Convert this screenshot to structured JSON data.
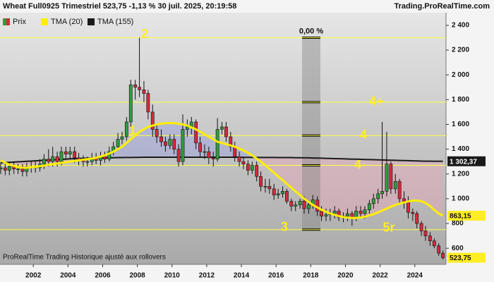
{
  "chart_data": {
    "type": "candlestick",
    "title": "Wheat Full0925 Trimestriel 523,75 -1,13 % 30 juil. 2025, 20:19:58",
    "source": "Trading.ProRealTime.com",
    "footer": "ProRealTime Trading  Historique ajusté aux rollovers",
    "xlim": [
      2000.08,
      2025.8
    ],
    "xticks": [
      2002,
      2004,
      2006,
      2008,
      2010,
      2012,
      2014,
      2016,
      2018,
      2020,
      2022,
      2024
    ],
    "ylim": [
      470,
      2445
    ],
    "yticks": [
      600,
      800,
      {
        "value": 1000,
        "label": "1 000"
      },
      {
        "value": 1200,
        "label": "1 200"
      },
      {
        "value": 1400,
        "label": "1 400"
      },
      {
        "value": 1600,
        "label": "1 600"
      },
      {
        "value": 1800,
        "label": "1 800"
      },
      {
        "value": 2000,
        "label": "2 000"
      },
      {
        "value": 2200,
        "label": "2 200"
      },
      {
        "value": 2400,
        "label": "2 400"
      }
    ],
    "x": [
      2000.12,
      2000.38,
      2000.62,
      2000.88,
      2001.12,
      2001.38,
      2001.62,
      2001.88,
      2002.12,
      2002.38,
      2002.62,
      2002.88,
      2003.12,
      2003.38,
      2003.62,
      2003.88,
      2004.12,
      2004.38,
      2004.62,
      2004.88,
      2005.12,
      2005.38,
      2005.62,
      2005.88,
      2006.12,
      2006.38,
      2006.62,
      2006.88,
      2007.12,
      2007.38,
      2007.62,
      2007.88,
      2008.12,
      2008.38,
      2008.62,
      2008.88,
      2009.12,
      2009.38,
      2009.62,
      2009.88,
      2010.12,
      2010.38,
      2010.62,
      2010.88,
      2011.12,
      2011.38,
      2011.62,
      2011.88,
      2012.12,
      2012.38,
      2012.62,
      2012.88,
      2013.12,
      2013.38,
      2013.62,
      2013.88,
      2014.12,
      2014.38,
      2014.62,
      2014.88,
      2015.12,
      2015.38,
      2015.62,
      2015.88,
      2016.12,
      2016.38,
      2016.62,
      2016.88,
      2017.12,
      2017.38,
      2017.62,
      2017.88,
      2018.12,
      2018.38,
      2018.62,
      2018.88,
      2019.12,
      2019.38,
      2019.62,
      2019.88,
      2020.12,
      2020.38,
      2020.62,
      2020.88,
      2021.12,
      2021.38,
      2021.62,
      2021.88,
      2022.12,
      2022.38,
      2022.62,
      2022.88,
      2023.12,
      2023.38,
      2023.62,
      2023.88,
      2024.12,
      2024.38,
      2024.62,
      2024.88,
      2025.12,
      2025.38,
      2025.62
    ],
    "series": [
      {
        "name": "Prix",
        "type": "candlestick",
        "up_color": "#2e9e3c",
        "down_color": "#d8283c",
        "last_label": "523,75",
        "label_color": "#ffee22",
        "open": [
          1240,
          1250,
          1230,
          1260,
          1240,
          1240,
          1220,
          1250,
          1260,
          1250,
          1280,
          1320,
          1300,
          1340,
          1300,
          1380,
          1360,
          1380,
          1330,
          1310,
          1300,
          1300,
          1330,
          1310,
          1340,
          1320,
          1380,
          1420,
          1480,
          1500,
          1620,
          1920,
          1900,
          1880,
          1850,
          1700,
          1560,
          1500,
          1460,
          1430,
          1480,
          1400,
          1300,
          1560,
          1580,
          1620,
          1450,
          1380,
          1380,
          1330,
          1320,
          1560,
          1580,
          1500,
          1420,
          1340,
          1300,
          1280,
          1230,
          1270,
          1180,
          1100,
          1100,
          1080,
          1030,
          1040,
          1060,
          980,
          940,
          950,
          980,
          920,
          950,
          990,
          900,
          860,
          870,
          880,
          900,
          850,
          860,
          880,
          840,
          900,
          880,
          910,
          960,
          1000,
          1040,
          1060,
          1280,
          1080,
          1140,
          1000,
          980,
          890,
          880,
          800,
          740,
          700,
          660,
          620,
          560
        ],
        "high": [
          1290,
          1290,
          1300,
          1300,
          1280,
          1280,
          1290,
          1300,
          1300,
          1320,
          1360,
          1400,
          1420,
          1380,
          1420,
          1420,
          1420,
          1420,
          1370,
          1350,
          1340,
          1370,
          1370,
          1380,
          1380,
          1420,
          1460,
          1530,
          1540,
          1660,
          1960,
          1960,
          2300,
          1950,
          1880,
          1760,
          1600,
          1560,
          1500,
          1520,
          1520,
          1440,
          1680,
          1640,
          1660,
          1640,
          1500,
          1440,
          1420,
          1380,
          1650,
          1620,
          1620,
          1540,
          1460,
          1380,
          1340,
          1310,
          1300,
          1300,
          1220,
          1160,
          1160,
          1120,
          1080,
          1100,
          1080,
          1000,
          980,
          1000,
          1020,
          980,
          1030,
          1020,
          940,
          920,
          920,
          940,
          920,
          890,
          920,
          900,
          940,
          940,
          940,
          990,
          1040,
          1080,
          1620,
          1540,
          1300,
          1200,
          1160,
          1060,
          1020,
          920,
          900,
          820,
          780,
          730,
          680,
          640,
          580
        ],
        "low": [
          1200,
          1190,
          1190,
          1200,
          1200,
          1180,
          1180,
          1210,
          1210,
          1220,
          1240,
          1260,
          1260,
          1260,
          1270,
          1320,
          1320,
          1290,
          1270,
          1260,
          1260,
          1270,
          1280,
          1270,
          1290,
          1300,
          1350,
          1390,
          1440,
          1470,
          1580,
          1800,
          1820,
          1780,
          1640,
          1500,
          1450,
          1420,
          1380,
          1400,
          1360,
          1260,
          1270,
          1500,
          1520,
          1400,
          1340,
          1320,
          1280,
          1260,
          1300,
          1520,
          1460,
          1380,
          1300,
          1260,
          1240,
          1190,
          1200,
          1140,
          1060,
          1050,
          1040,
          990,
          1000,
          1010,
          960,
          900,
          900,
          920,
          880,
          880,
          920,
          860,
          820,
          820,
          820,
          840,
          820,
          810,
          820,
          780,
          820,
          840,
          840,
          880,
          920,
          960,
          1000,
          1020,
          1040,
          1040,
          960,
          920,
          840,
          820,
          760,
          700,
          660,
          620,
          600,
          540,
          510
        ],
        "close": [
          1250,
          1230,
          1260,
          1240,
          1240,
          1220,
          1250,
          1260,
          1250,
          1280,
          1320,
          1300,
          1340,
          1300,
          1380,
          1360,
          1380,
          1330,
          1310,
          1300,
          1300,
          1330,
          1310,
          1340,
          1320,
          1380,
          1420,
          1480,
          1500,
          1620,
          1920,
          1900,
          1880,
          1850,
          1700,
          1560,
          1500,
          1460,
          1430,
          1480,
          1400,
          1300,
          1560,
          1580,
          1620,
          1450,
          1380,
          1380,
          1330,
          1320,
          1560,
          1580,
          1500,
          1420,
          1340,
          1300,
          1280,
          1230,
          1270,
          1180,
          1100,
          1100,
          1080,
          1030,
          1040,
          1060,
          980,
          940,
          950,
          980,
          920,
          950,
          990,
          900,
          860,
          870,
          880,
          900,
          850,
          860,
          880,
          840,
          900,
          880,
          910,
          960,
          1000,
          1040,
          1060,
          1280,
          1080,
          1140,
          1000,
          980,
          890,
          880,
          800,
          740,
          700,
          660,
          620,
          560,
          523.75
        ]
      },
      {
        "name": "TMA (20)",
        "type": "line",
        "color": "#ffee00",
        "last_label": "863,15",
        "label_color": "#ffee22",
        "values": [
          1310,
          1290,
          1275,
          1265,
          1255,
          1250,
          1250,
          1255,
          1258,
          1262,
          1268,
          1275,
          1280,
          1285,
          1290,
          1295,
          1300,
          1305,
          1310,
          1315,
          1320,
          1325,
          1330,
          1340,
          1350,
          1365,
          1380,
          1400,
          1420,
          1450,
          1480,
          1510,
          1540,
          1560,
          1580,
          1590,
          1600,
          1605,
          1610,
          1610,
          1610,
          1605,
          1600,
          1590,
          1575,
          1560,
          1540,
          1520,
          1500,
          1480,
          1460,
          1450,
          1440,
          1430,
          1420,
          1405,
          1390,
          1370,
          1350,
          1325,
          1300,
          1270,
          1240,
          1210,
          1180,
          1150,
          1120,
          1090,
          1060,
          1030,
          1000,
          975,
          950,
          930,
          910,
          895,
          880,
          870,
          860,
          852,
          848,
          845,
          845,
          848,
          855,
          865,
          875,
          890,
          905,
          920,
          935,
          950,
          960,
          970,
          978,
          985,
          985,
          980,
          965,
          940,
          910,
          880,
          863.15
        ]
      },
      {
        "name": "TMA (155)",
        "type": "line",
        "color": "#1a1a1a",
        "last_label": "1 302,37",
        "label_color": "#1a1a1a",
        "values": [
          1290,
          1292,
          1294,
          1296,
          1298,
          1300,
          1302,
          1304,
          1306,
          1308,
          1310,
          1312,
          1314,
          1316,
          1318,
          1320,
          1322,
          1324,
          1325,
          1326,
          1327,
          1328,
          1329,
          1330,
          1330,
          1331,
          1331,
          1332,
          1332,
          1333,
          1333,
          1334,
          1334,
          1335,
          1335,
          1335,
          1335,
          1335,
          1335,
          1335,
          1335,
          1335,
          1335,
          1335,
          1335,
          1335,
          1335,
          1335,
          1335,
          1335,
          1335,
          1335,
          1335,
          1335,
          1335,
          1335,
          1334,
          1334,
          1334,
          1334,
          1333,
          1333,
          1333,
          1333,
          1332,
          1332,
          1332,
          1332,
          1331,
          1331,
          1330,
          1330,
          1329,
          1328,
          1327,
          1326,
          1325,
          1324,
          1323,
          1322,
          1321,
          1320,
          1319,
          1318,
          1317,
          1316,
          1315,
          1314,
          1313,
          1312,
          1311,
          1310,
          1309,
          1308,
          1307,
          1306,
          1305,
          1304,
          1303,
          1303,
          1302.8,
          1302.6,
          1302.37
        ]
      }
    ],
    "levels": [
      {
        "value": 2300,
        "labels": [
          "2"
        ]
      },
      {
        "value": 1780,
        "labels": [
          "4+"
        ]
      },
      {
        "value": 1510,
        "labels": [
          "4",
          "1"
        ]
      },
      {
        "value": 1270,
        "labels": [
          "4-"
        ]
      },
      {
        "value": 750,
        "labels": [
          "3",
          "5r"
        ]
      }
    ],
    "measure": {
      "label": "0,00 %"
    }
  }
}
